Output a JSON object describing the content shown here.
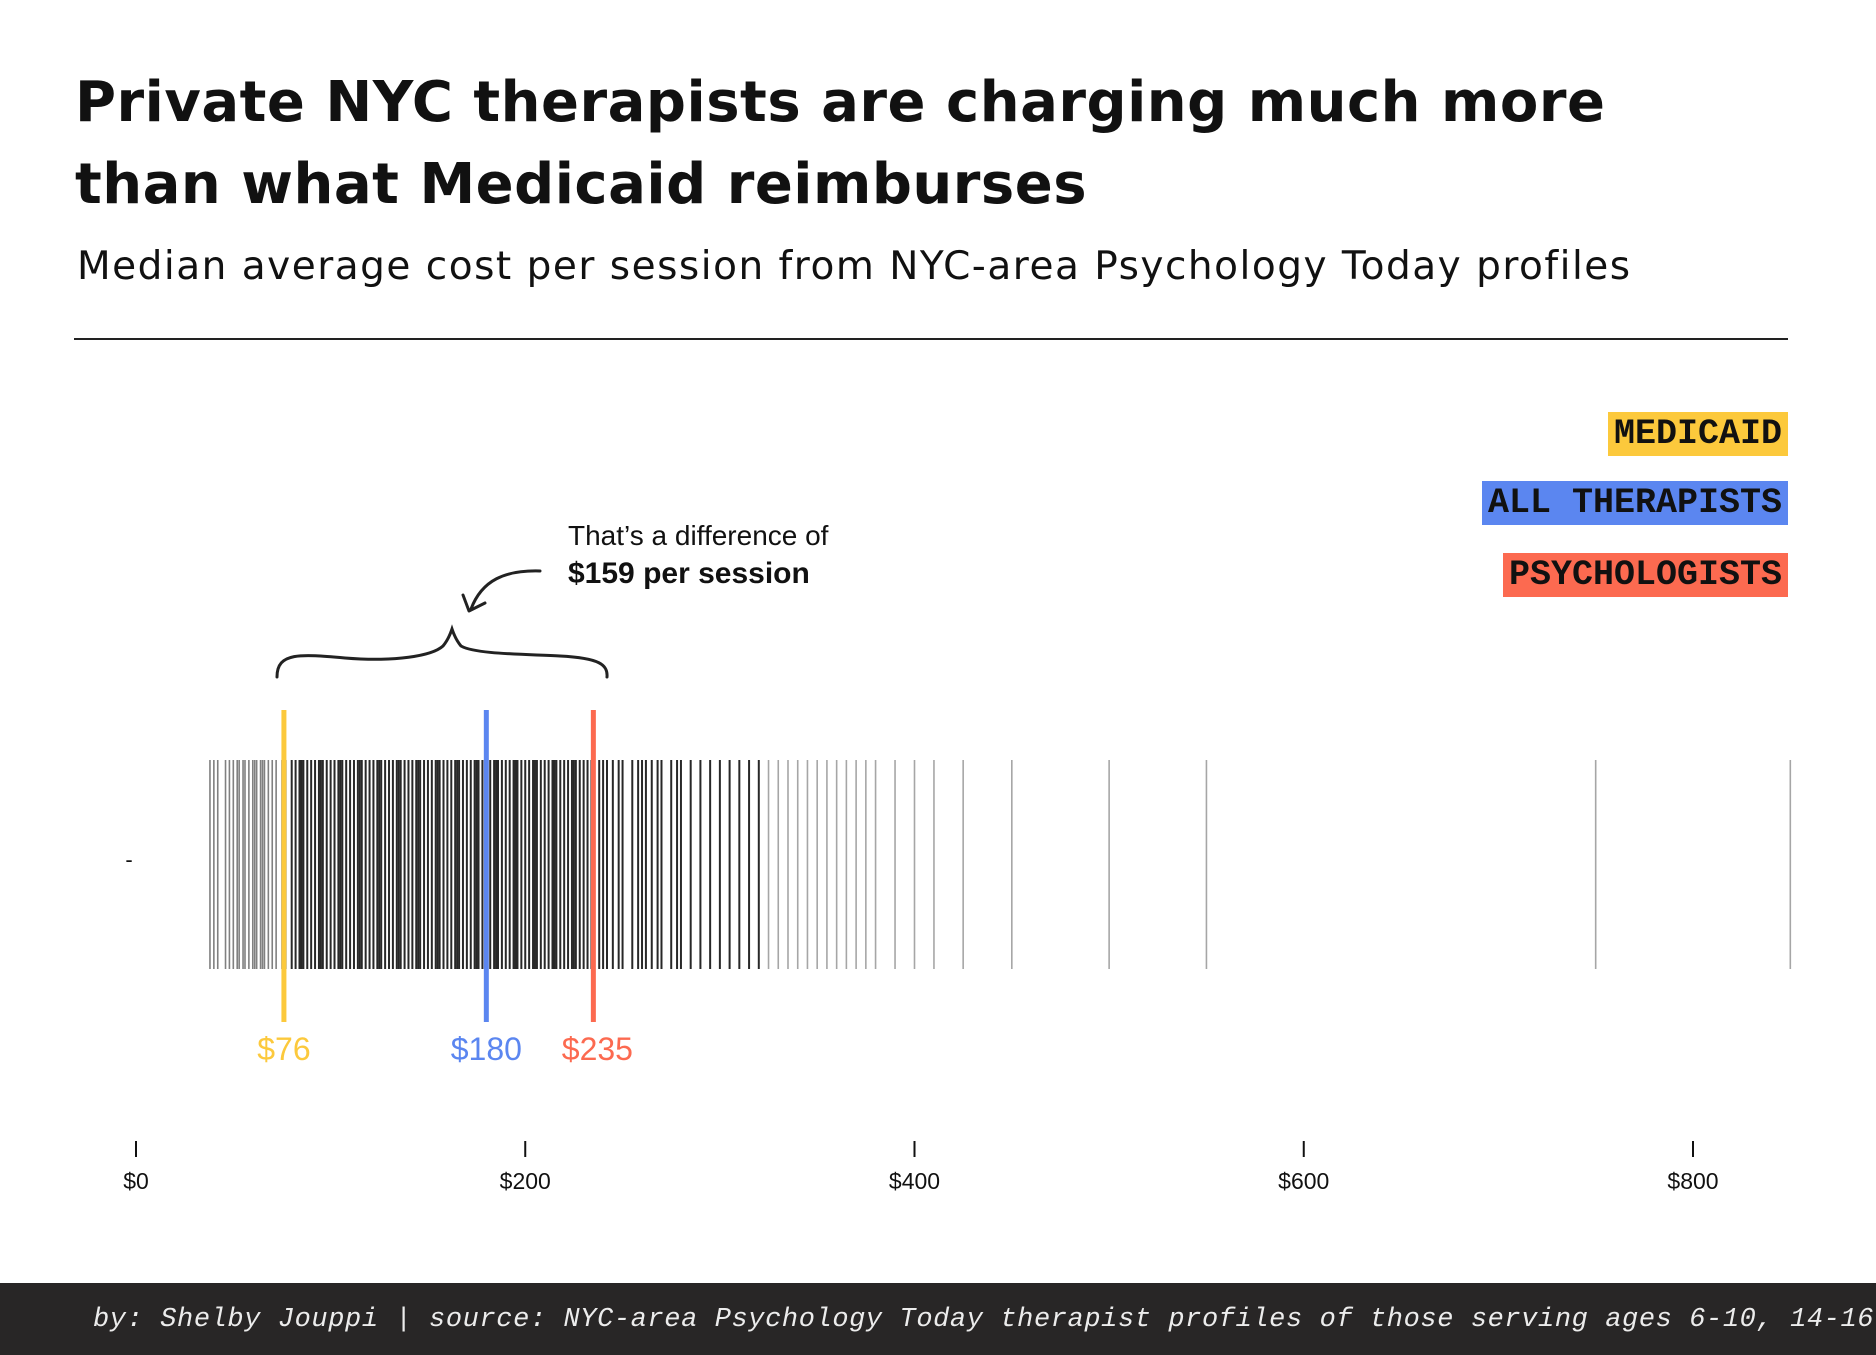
{
  "header": {
    "title": "Private NYC therapists are charging much more than what Medicaid reimburses",
    "subtitle": "Median average cost per session from NYC-area Psychology Today profiles"
  },
  "legend": [
    {
      "label": "MEDICAID",
      "color": "#fcc93c"
    },
    {
      "label": "ALL THERAPISTS",
      "color": "#5b86f0"
    },
    {
      "label": "PSYCHOLOGISTS",
      "color": "#fc6a50"
    }
  ],
  "annotation": {
    "line1": "That’s a difference of",
    "line2": "$159 per session"
  },
  "footer": {
    "text": "by: Shelby Jouppi | source: NYC-area Psychology Today therapist profiles of those serving ages 6-10, 14-16"
  },
  "chart_data": {
    "type": "strip",
    "x_unit": "USD per session",
    "xlim": [
      0,
      850
    ],
    "x_ticks": [
      0,
      200,
      400,
      600,
      800
    ],
    "x_tick_labels": [
      "$0",
      "$200",
      "$400",
      "$600",
      "$800"
    ],
    "y_tick_labels": [
      "-"
    ],
    "grid": false,
    "legend_position": "top-right",
    "medians": [
      {
        "name": "MEDICAID",
        "value": 76,
        "label": "$76",
        "color": "#fcc93c"
      },
      {
        "name": "ALL THERAPISTS",
        "value": 180,
        "label": "$180",
        "color": "#5b86f0"
      },
      {
        "name": "PSYCHOLOGISTS",
        "value": 235,
        "label": "$235",
        "color": "#fc6a50"
      }
    ],
    "difference": 159,
    "values": [
      38,
      40,
      42,
      46,
      48,
      50,
      52,
      53,
      55,
      56,
      58,
      60,
      61,
      62,
      64,
      65,
      66,
      68,
      70,
      72,
      75,
      77,
      80,
      82,
      84,
      85,
      86,
      88,
      90,
      92,
      94,
      95,
      96,
      98,
      100,
      102,
      104,
      105,
      106,
      108,
      110,
      112,
      114,
      115,
      116,
      118,
      120,
      122,
      124,
      125,
      126,
      128,
      130,
      132,
      134,
      135,
      136,
      138,
      140,
      142,
      144,
      145,
      146,
      148,
      150,
      152,
      154,
      155,
      156,
      158,
      160,
      162,
      164,
      165,
      166,
      168,
      170,
      172,
      174,
      175,
      176,
      178,
      180,
      182,
      184,
      185,
      186,
      188,
      190,
      192,
      194,
      195,
      196,
      198,
      200,
      202,
      204,
      205,
      206,
      208,
      210,
      212,
      214,
      215,
      216,
      218,
      220,
      222,
      224,
      225,
      226,
      228,
      230,
      232,
      234,
      235,
      238,
      240,
      242,
      245,
      248,
      250,
      255,
      258,
      260,
      262,
      265,
      268,
      270,
      275,
      278,
      280,
      285,
      290,
      295,
      300,
      305,
      310,
      315,
      320,
      325,
      330,
      335,
      340,
      345,
      350,
      355,
      360,
      365,
      370,
      375,
      380,
      390,
      400,
      410,
      425,
      450,
      500,
      550,
      750,
      850
    ]
  }
}
